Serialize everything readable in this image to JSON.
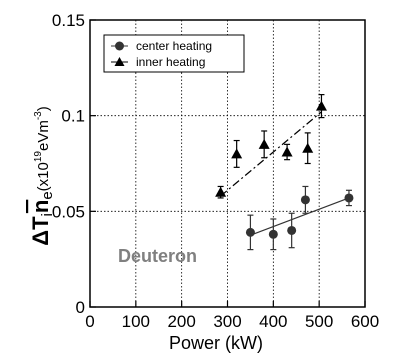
{
  "chart_data": {
    "type": "scatter",
    "xlabel": "Power (kW)",
    "ylabel": {
      "symbol": "ΔT",
      "subscript": "i",
      "density": "n",
      "density_sub": "e",
      "unit_prefix": "(x10",
      "unit_exp1": "19",
      "unit_mid": "eVm",
      "unit_exp2": "-3",
      "unit_suffix": ")"
    },
    "xlim": [
      0,
      600
    ],
    "ylim": [
      0,
      0.15
    ],
    "x_ticks": [
      0,
      100,
      200,
      300,
      400,
      500,
      600
    ],
    "y_ticks": [
      0,
      0.05,
      0.1,
      0.15
    ],
    "x_tick_labels": [
      "0",
      "100",
      "200",
      "300",
      "400",
      "500",
      "600"
    ],
    "y_tick_labels": [
      "0",
      "0.05",
      "0.1",
      "0.15"
    ],
    "grid": "dotted",
    "legend_position": "top-left",
    "annotation": "Deuteron",
    "series": [
      {
        "name": "center heating",
        "marker": "circle",
        "color": "#333333",
        "points": [
          {
            "x": 350,
            "y": 0.039,
            "err": 0.009
          },
          {
            "x": 400,
            "y": 0.038,
            "err": 0.008
          },
          {
            "x": 440,
            "y": 0.04,
            "err": 0.009
          },
          {
            "x": 470,
            "y": 0.056,
            "err": 0.007
          },
          {
            "x": 565,
            "y": 0.057,
            "err": 0.004
          }
        ],
        "fit": {
          "x": [
            350,
            565
          ],
          "y": [
            0.0375,
            0.057
          ],
          "style": "solid"
        }
      },
      {
        "name": "inner heating",
        "marker": "triangle",
        "color": "#000000",
        "points": [
          {
            "x": 285,
            "y": 0.06,
            "err": 0.003
          },
          {
            "x": 320,
            "y": 0.08,
            "err": 0.007
          },
          {
            "x": 380,
            "y": 0.085,
            "err": 0.007
          },
          {
            "x": 430,
            "y": 0.081,
            "err": 0.004
          },
          {
            "x": 475,
            "y": 0.083,
            "err": 0.008
          },
          {
            "x": 505,
            "y": 0.105,
            "err": 0.006
          }
        ],
        "fit": {
          "x": [
            285,
            505
          ],
          "y": [
            0.058,
            0.102
          ],
          "style": "dash-dot"
        }
      }
    ]
  }
}
